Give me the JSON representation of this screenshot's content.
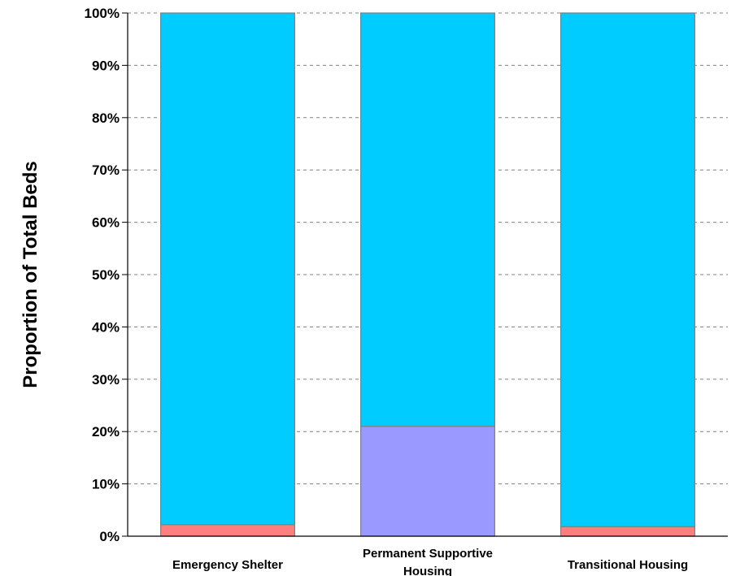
{
  "chart_data": {
    "type": "bar",
    "stacked": true,
    "ylabel": "Proportion of Total Beds",
    "ylim": [
      0,
      100
    ],
    "yticks": [
      "0%",
      "10%",
      "20%",
      "30%",
      "40%",
      "50%",
      "60%",
      "70%",
      "80%",
      "90%",
      "100%"
    ],
    "categories": [
      "Emergency Shelter",
      "Permanent Supportive Housing",
      "Transitional Housing"
    ],
    "category_label_lines": [
      [
        "Emergency Shelter"
      ],
      [
        "Permanent Supportive",
        "Housing"
      ],
      [
        "Transitional Housing"
      ]
    ],
    "grid": true,
    "series": [
      {
        "values": [
          2.2,
          0,
          1.8
        ],
        "color": "#ff7f7f"
      },
      {
        "values": [
          0,
          21,
          0
        ],
        "color": "#9999ff"
      },
      {
        "values": [
          97.8,
          79,
          98.2
        ],
        "color": "#00ccff"
      }
    ]
  }
}
